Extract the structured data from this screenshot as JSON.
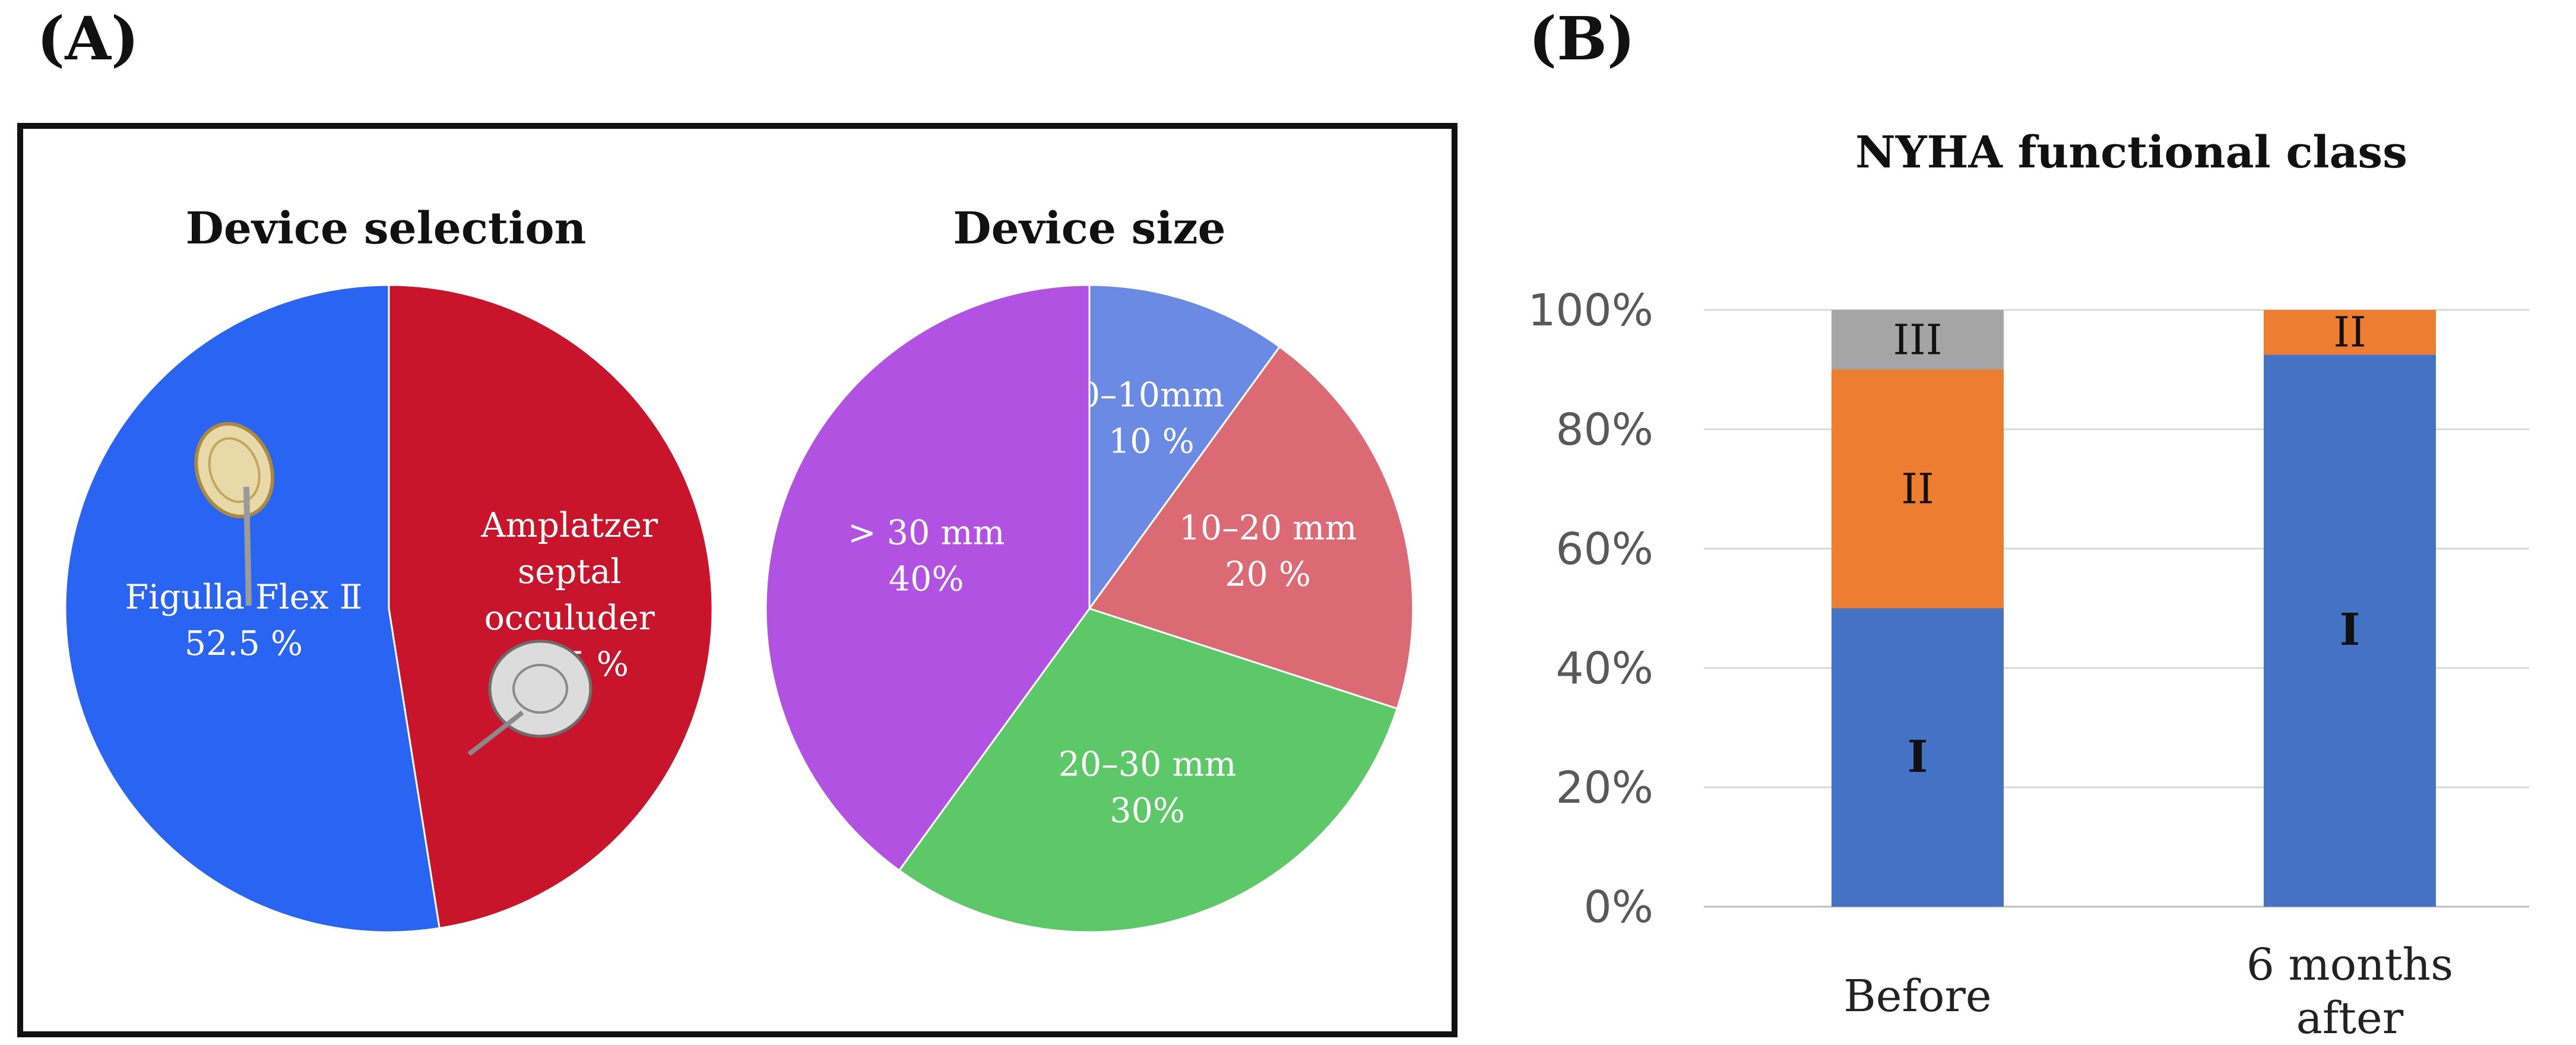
{
  "panels": {
    "a_letter": "(A)",
    "b_letter": "(B)"
  },
  "chart_data": [
    {
      "type": "pie",
      "title": "Device selection",
      "slices": [
        {
          "label": "Amplatzer septal occuluder",
          "label_lines": [
            "Amplatzer",
            "septal",
            "occuluder",
            "47.5 %"
          ],
          "value": 47.5,
          "color": "#c8152b"
        },
        {
          "label": "Figulla Flex II",
          "label_lines": [
            "Figulla Flex Ⅱ",
            "52.5 %"
          ],
          "value": 52.5,
          "color": "#2a64f2"
        }
      ]
    },
    {
      "type": "pie",
      "title": "Device size",
      "slices": [
        {
          "label": "0–10mm",
          "label_lines": [
            "0–10mm",
            "10 %"
          ],
          "value": 10,
          "color": "#6a8ae4"
        },
        {
          "label": "10–20 mm",
          "label_lines": [
            "10–20 mm",
            "20 %"
          ],
          "value": 20,
          "color": "#dc6a74"
        },
        {
          "label": "20–30 mm",
          "label_lines": [
            "20–30 mm",
            "30%"
          ],
          "value": 30,
          "color": "#5cc868"
        },
        {
          "label": "> 30 mm",
          "label_lines": [
            "> 30 mm",
            "40%"
          ],
          "value": 40,
          "color": "#b152e3"
        }
      ]
    },
    {
      "type": "bar",
      "stacked": true,
      "title": "NYHA functional class",
      "categories": [
        [
          "Before"
        ],
        [
          "6 months",
          "after"
        ]
      ],
      "series": [
        {
          "name": "I",
          "values": [
            50,
            92.5
          ],
          "color": "#4472c4"
        },
        {
          "name": "II",
          "values": [
            40,
            7.5
          ],
          "color": "#ed7d31"
        },
        {
          "name": "III",
          "values": [
            10,
            0
          ],
          "color": "#a5a5a5"
        }
      ],
      "ylim": [
        0,
        100
      ],
      "yticks": [
        "0%",
        "20%",
        "40%",
        "60%",
        "80%",
        "100%"
      ],
      "grid": true
    }
  ]
}
